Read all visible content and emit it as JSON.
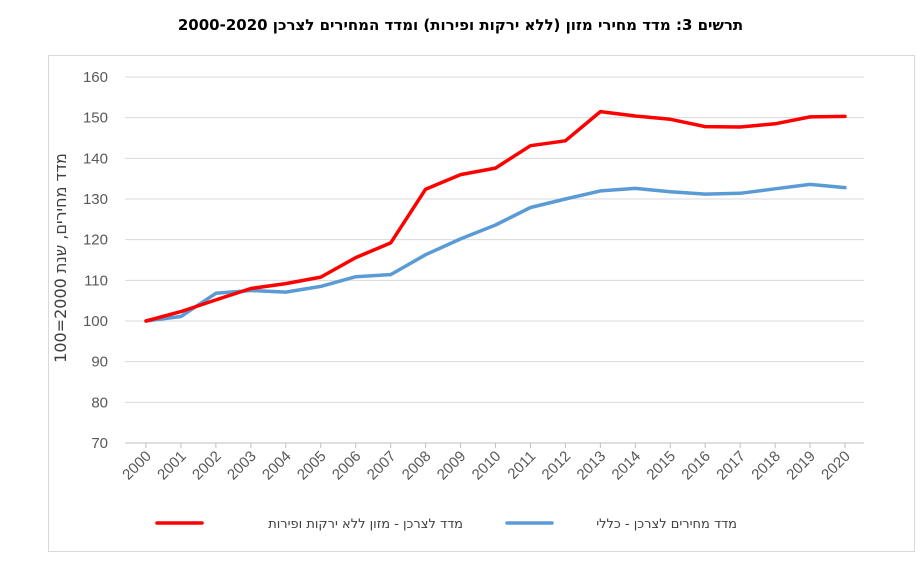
{
  "chart_data": {
    "type": "line",
    "title": "תרשים 3: מדד מחירי מזון (ללא ירקות ופירות) ומדד המחירים לצרכן 2000-2020",
    "xlabel": "",
    "ylabel": "מדד מחירים, שנת 2000=100",
    "ylim": [
      70,
      160
    ],
    "yticks": [
      "70",
      "80",
      "90",
      "100",
      "110",
      "120",
      "130",
      "140",
      "150",
      "160"
    ],
    "categories": [
      "2000",
      "2001",
      "2002",
      "2003",
      "2004",
      "2005",
      "2006",
      "2007",
      "2008",
      "2009",
      "2010",
      "2011",
      "2012",
      "2013",
      "2014",
      "2015",
      "2016",
      "2017",
      "2018",
      "2019",
      "2020"
    ],
    "grid": "horizontal",
    "legend_position": "bottom",
    "series": [
      {
        "name": "מדד לצרכן - מזון ללא ירקות ופירות",
        "color": "#ff0000",
        "values": [
          100,
          102.3,
          105.2,
          108,
          109.2,
          110.8,
          115.6,
          119.2,
          132.4,
          136,
          137.6,
          143.1,
          144.3,
          151.5,
          150.4,
          149.6,
          147.8,
          147.7,
          148.5,
          150.2,
          150.3
        ]
      },
      {
        "name": "מדד מחירים לצרכן - כללי",
        "color": "#5b9bd5",
        "values": [
          100,
          101.1,
          106.8,
          107.5,
          107.1,
          108.5,
          110.9,
          111.4,
          116.3,
          120.2,
          123.6,
          127.9,
          130,
          132,
          132.6,
          131.8,
          131.2,
          131.4,
          132.5,
          133.6,
          132.8
        ]
      }
    ]
  }
}
